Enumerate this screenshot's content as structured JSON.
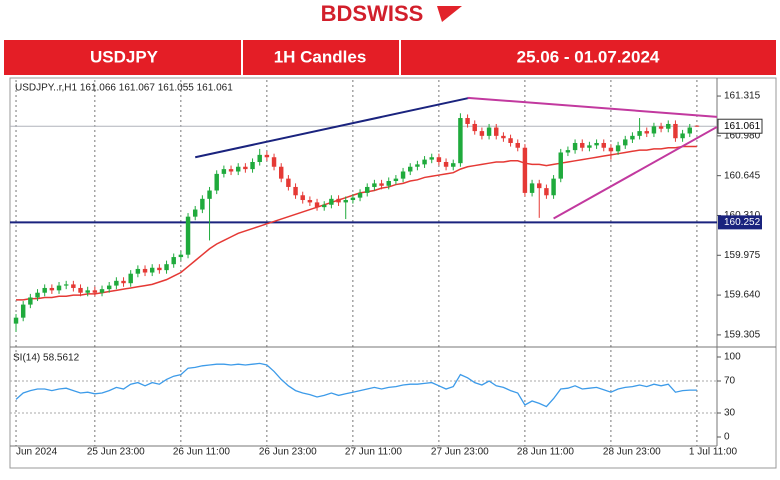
{
  "header": {
    "logo": "BDSWISS",
    "cells": [
      "USDJPY",
      "1H Candles",
      "25.06 - 01.07.2024"
    ]
  },
  "chart_data": [
    {
      "type": "candlestick",
      "info": "USDJPY..r,H1  161.066 161.067 161.055 161.061",
      "up_color": "#1faa3c",
      "down_color": "#e53935",
      "xlim": [
        -0.84,
        97.8
      ],
      "ylim": [
        159.22,
        161.45
      ],
      "xticks": [
        {
          "value": 0,
          "label": "Jun 2024"
        },
        {
          "value": 11,
          "label": "25 Jun 23:00"
        },
        {
          "value": 23,
          "label": "26 Jun 11:00"
        },
        {
          "value": 35,
          "label": "26 Jun 23:00"
        },
        {
          "value": 47,
          "label": "27 Jun 11:00"
        },
        {
          "value": 59,
          "label": "27 Jun 23:00"
        },
        {
          "value": 71,
          "label": "28 Jun 11:00"
        },
        {
          "value": 83,
          "label": "28 Jun 23:00"
        },
        {
          "value": 95,
          "label": "1 Jul 11:00"
        }
      ],
      "yticks": [
        161.315,
        {
          "value": 160.98,
          "label": "160.980"
        },
        160.645,
        {
          "value": 160.31,
          "label": "160.310"
        },
        159.975,
        {
          "value": 159.64,
          "label": "159.640"
        },
        159.305
      ],
      "x": [
        0,
        1,
        2,
        3,
        4,
        5,
        6,
        7,
        8,
        9,
        10,
        11,
        12,
        13,
        14,
        15,
        16,
        17,
        18,
        19,
        20,
        21,
        22,
        23,
        24,
        25,
        26,
        27,
        28,
        29,
        30,
        31,
        32,
        33,
        34,
        35,
        36,
        37,
        38,
        39,
        40,
        41,
        42,
        43,
        44,
        45,
        46,
        47,
        48,
        49,
        50,
        51,
        52,
        53,
        54,
        55,
        56,
        57,
        58,
        59,
        60,
        61,
        62,
        63,
        64,
        65,
        66,
        67,
        68,
        69,
        70,
        71,
        72,
        73,
        74,
        75,
        76,
        77,
        78,
        79,
        80,
        81,
        82,
        83,
        84,
        85,
        86,
        87,
        88,
        89,
        90,
        91,
        92,
        93,
        94,
        95
      ],
      "open": [
        159.4,
        159.45,
        159.56,
        159.62,
        159.66,
        159.7,
        159.68,
        159.72,
        159.73,
        159.7,
        159.66,
        159.68,
        159.66,
        159.69,
        159.72,
        159.76,
        159.74,
        159.82,
        159.86,
        159.83,
        159.87,
        159.85,
        159.9,
        159.96,
        159.98,
        160.3,
        160.36,
        160.45,
        160.52,
        160.66,
        160.7,
        160.68,
        160.72,
        160.7,
        160.76,
        160.82,
        160.8,
        160.72,
        160.62,
        160.55,
        160.48,
        160.44,
        160.42,
        160.38,
        160.4,
        160.45,
        160.42,
        160.44,
        160.46,
        160.5,
        160.55,
        160.58,
        160.56,
        160.6,
        160.62,
        160.68,
        160.72,
        160.74,
        160.78,
        160.8,
        160.76,
        160.72,
        160.75,
        161.13,
        161.08,
        161.02,
        160.98,
        161.05,
        160.98,
        160.96,
        160.92,
        160.88,
        160.5,
        160.58,
        160.54,
        160.48,
        160.62,
        160.84,
        160.86,
        160.92,
        160.88,
        160.9,
        160.92,
        160.88,
        160.85,
        160.9,
        160.95,
        160.98,
        161.02,
        161.0,
        161.06,
        161.04,
        161.08,
        160.96,
        161.0,
        161.066
      ],
      "high": [
        159.48,
        159.59,
        159.65,
        159.69,
        159.73,
        159.73,
        159.75,
        159.76,
        159.76,
        159.73,
        159.71,
        159.71,
        159.72,
        159.75,
        159.79,
        159.79,
        159.85,
        159.89,
        159.89,
        159.9,
        159.9,
        159.93,
        159.99,
        160.01,
        160.33,
        160.39,
        160.48,
        160.55,
        160.69,
        160.73,
        160.73,
        160.75,
        160.75,
        160.79,
        160.87,
        160.85,
        160.83,
        160.75,
        160.65,
        160.58,
        160.51,
        160.47,
        160.45,
        160.43,
        160.48,
        160.48,
        160.47,
        160.49,
        160.53,
        160.58,
        160.61,
        160.61,
        160.63,
        160.65,
        160.71,
        160.75,
        160.77,
        160.81,
        160.83,
        160.83,
        160.79,
        160.78,
        161.17,
        161.16,
        161.11,
        161.05,
        161.08,
        161.08,
        161.01,
        160.99,
        160.95,
        160.91,
        160.61,
        160.61,
        160.57,
        160.65,
        160.87,
        160.89,
        160.95,
        160.95,
        160.93,
        160.95,
        160.95,
        160.91,
        160.93,
        160.98,
        161.01,
        161.13,
        161.05,
        161.09,
        161.09,
        161.11,
        161.11,
        161.03,
        161.08,
        161.067
      ],
      "low": [
        159.33,
        159.42,
        159.53,
        159.59,
        159.63,
        159.65,
        159.65,
        159.69,
        159.67,
        159.63,
        159.63,
        159.63,
        159.63,
        159.66,
        159.69,
        159.71,
        159.71,
        159.79,
        159.8,
        159.8,
        159.82,
        159.82,
        159.87,
        159.93,
        159.95,
        160.27,
        160.33,
        160.1,
        160.49,
        160.63,
        160.65,
        160.65,
        160.67,
        160.67,
        160.73,
        160.77,
        160.69,
        160.59,
        160.52,
        160.45,
        160.41,
        160.39,
        160.35,
        160.35,
        160.37,
        160.39,
        160.28,
        160.41,
        160.43,
        160.47,
        160.52,
        160.53,
        160.53,
        160.57,
        160.59,
        160.65,
        160.69,
        160.71,
        160.75,
        160.73,
        160.69,
        160.69,
        160.72,
        161.05,
        160.99,
        160.95,
        160.95,
        160.95,
        160.93,
        160.89,
        160.85,
        160.47,
        160.47,
        160.29,
        160.45,
        160.45,
        160.59,
        160.81,
        160.83,
        160.85,
        160.85,
        160.87,
        160.85,
        160.78,
        160.82,
        160.87,
        160.92,
        160.95,
        160.97,
        160.97,
        161.01,
        161.01,
        160.93,
        160.93,
        160.97,
        161.055
      ],
      "close": [
        159.45,
        159.56,
        159.62,
        159.66,
        159.7,
        159.68,
        159.72,
        159.73,
        159.7,
        159.66,
        159.68,
        159.66,
        159.69,
        159.72,
        159.76,
        159.74,
        159.82,
        159.86,
        159.83,
        159.87,
        159.85,
        159.9,
        159.96,
        159.98,
        160.3,
        160.36,
        160.45,
        160.52,
        160.66,
        160.7,
        160.68,
        160.72,
        160.7,
        160.76,
        160.82,
        160.8,
        160.72,
        160.62,
        160.55,
        160.48,
        160.44,
        160.42,
        160.38,
        160.4,
        160.45,
        160.42,
        160.44,
        160.46,
        160.5,
        160.55,
        160.58,
        160.56,
        160.6,
        160.62,
        160.68,
        160.72,
        160.74,
        160.78,
        160.8,
        160.76,
        160.72,
        160.75,
        161.13,
        161.08,
        161.02,
        160.98,
        161.05,
        160.98,
        160.96,
        160.92,
        160.88,
        160.5,
        160.58,
        160.54,
        160.48,
        160.62,
        160.84,
        160.86,
        160.92,
        160.88,
        160.9,
        160.92,
        160.88,
        160.85,
        160.9,
        160.95,
        160.98,
        161.02,
        161.0,
        161.06,
        161.04,
        161.08,
        160.96,
        161.0,
        161.05,
        161.061
      ],
      "ma": {
        "color": "#e53935",
        "values": [
          159.6,
          159.6,
          159.61,
          159.61,
          159.62,
          159.62,
          159.63,
          159.63,
          159.64,
          159.64,
          159.65,
          159.65,
          159.66,
          159.67,
          159.68,
          159.69,
          159.7,
          159.71,
          159.72,
          159.73,
          159.75,
          159.77,
          159.8,
          159.83,
          159.88,
          159.93,
          159.98,
          160.03,
          160.07,
          160.1,
          160.13,
          160.16,
          160.18,
          160.2,
          160.22,
          160.24,
          160.26,
          160.28,
          160.3,
          160.32,
          160.34,
          160.36,
          160.38,
          160.4,
          160.42,
          160.44,
          160.46,
          160.48,
          160.5,
          160.51,
          160.52,
          160.54,
          160.55,
          160.57,
          160.58,
          160.6,
          160.61,
          160.63,
          160.64,
          160.65,
          160.66,
          160.67,
          160.7,
          160.72,
          160.73,
          160.74,
          160.75,
          160.76,
          160.76,
          160.77,
          160.77,
          160.75,
          160.74,
          160.74,
          160.73,
          160.74,
          160.75,
          160.76,
          160.77,
          160.78,
          160.79,
          160.8,
          160.81,
          160.82,
          160.83,
          160.84,
          160.85,
          160.86,
          160.86,
          160.87,
          160.87,
          160.88,
          160.88,
          160.89,
          160.89,
          160.89
        ]
      },
      "trendlines": [
        {
          "x": [
            25,
            63.3
          ],
          "y": [
            160.8,
            161.3
          ],
          "color": "#1a237e"
        },
        {
          "x": [
            63,
            97.8
          ],
          "y": [
            161.3,
            161.14
          ],
          "color": "#c2399f"
        },
        {
          "x": [
            75,
            97.8
          ],
          "y": [
            160.285,
            161.055
          ],
          "color": "#c2399f"
        }
      ],
      "hline": {
        "value": 160.252,
        "color": "#1a237e"
      },
      "last_price": 161.061
    },
    {
      "type": "line",
      "title": "SI(14) 58.5612",
      "color": "#3d9be9",
      "ylim": [
        -10,
        110
      ],
      "yticks": [
        100,
        70,
        30,
        0
      ],
      "levels": [
        70,
        30
      ],
      "values": [
        47,
        55,
        58,
        60,
        60,
        58,
        60,
        61,
        58,
        55,
        56,
        54,
        55,
        58,
        62,
        60,
        66,
        68,
        64,
        68,
        66,
        72,
        76,
        78,
        86,
        87,
        89,
        90,
        91,
        91,
        90,
        91,
        90,
        91,
        92,
        90,
        82,
        72,
        64,
        58,
        55,
        53,
        50,
        52,
        55,
        52,
        54,
        56,
        58,
        60,
        62,
        60,
        62,
        63,
        65,
        66,
        66,
        67,
        68,
        64,
        60,
        63,
        78,
        74,
        68,
        65,
        70,
        64,
        62,
        58,
        55,
        40,
        45,
        42,
        38,
        48,
        60,
        61,
        64,
        60,
        61,
        62,
        59,
        56,
        60,
        62,
        63,
        65,
        63,
        66,
        64,
        66,
        56,
        58,
        58.56,
        58.5612
      ]
    }
  ]
}
